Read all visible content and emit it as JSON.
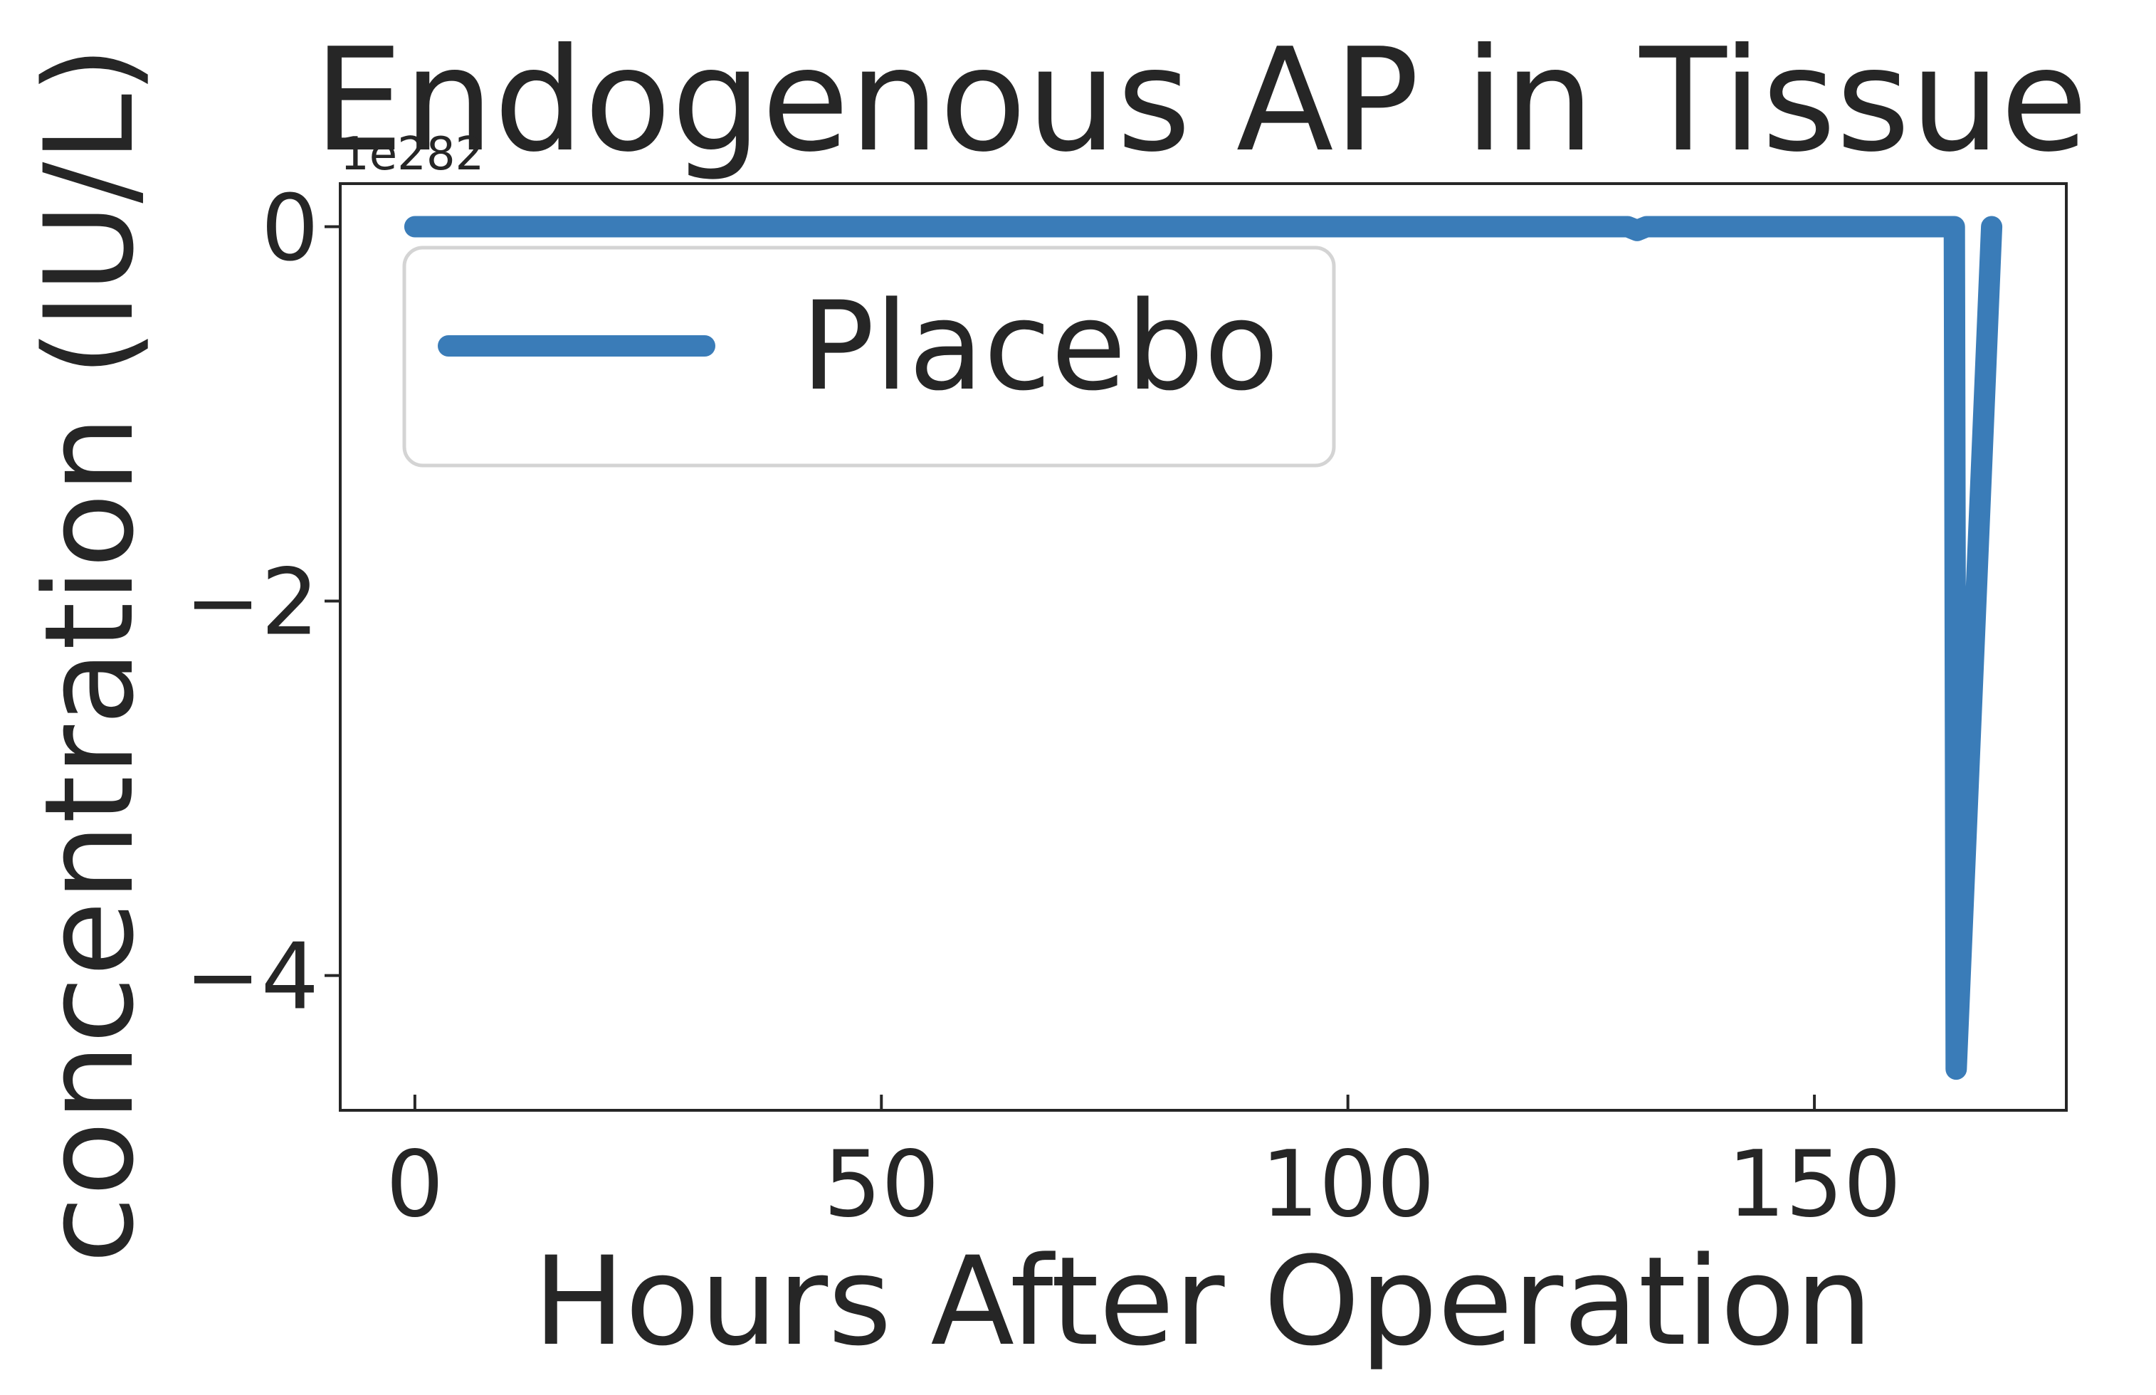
{
  "chart_data": {
    "type": "line",
    "title": "Endogenous AP in Tissue",
    "xlabel": "Hours After Operation",
    "ylabel": "concentration (IU/L)",
    "y_offset_text": "1e282",
    "xlim": [
      -8,
      177
    ],
    "ylim": [
      -4.72,
      0.23
    ],
    "x_ticks": [
      0,
      50,
      100,
      150
    ],
    "x_tick_labels": [
      "0",
      "50",
      "100",
      "150"
    ],
    "y_ticks": [
      0,
      -2,
      -4
    ],
    "y_tick_labels": [
      "0",
      "−2",
      "−4"
    ],
    "grid": false,
    "legend": {
      "position": "upper-left"
    },
    "series": [
      {
        "name": "Placebo",
        "color": "#3a7cb8",
        "x": [
          0,
          130,
          131,
          132,
          164,
          165,
          165.2,
          169
        ],
        "y": [
          0,
          0,
          -0.02,
          0,
          0,
          0,
          -4.5,
          0
        ]
      }
    ]
  }
}
